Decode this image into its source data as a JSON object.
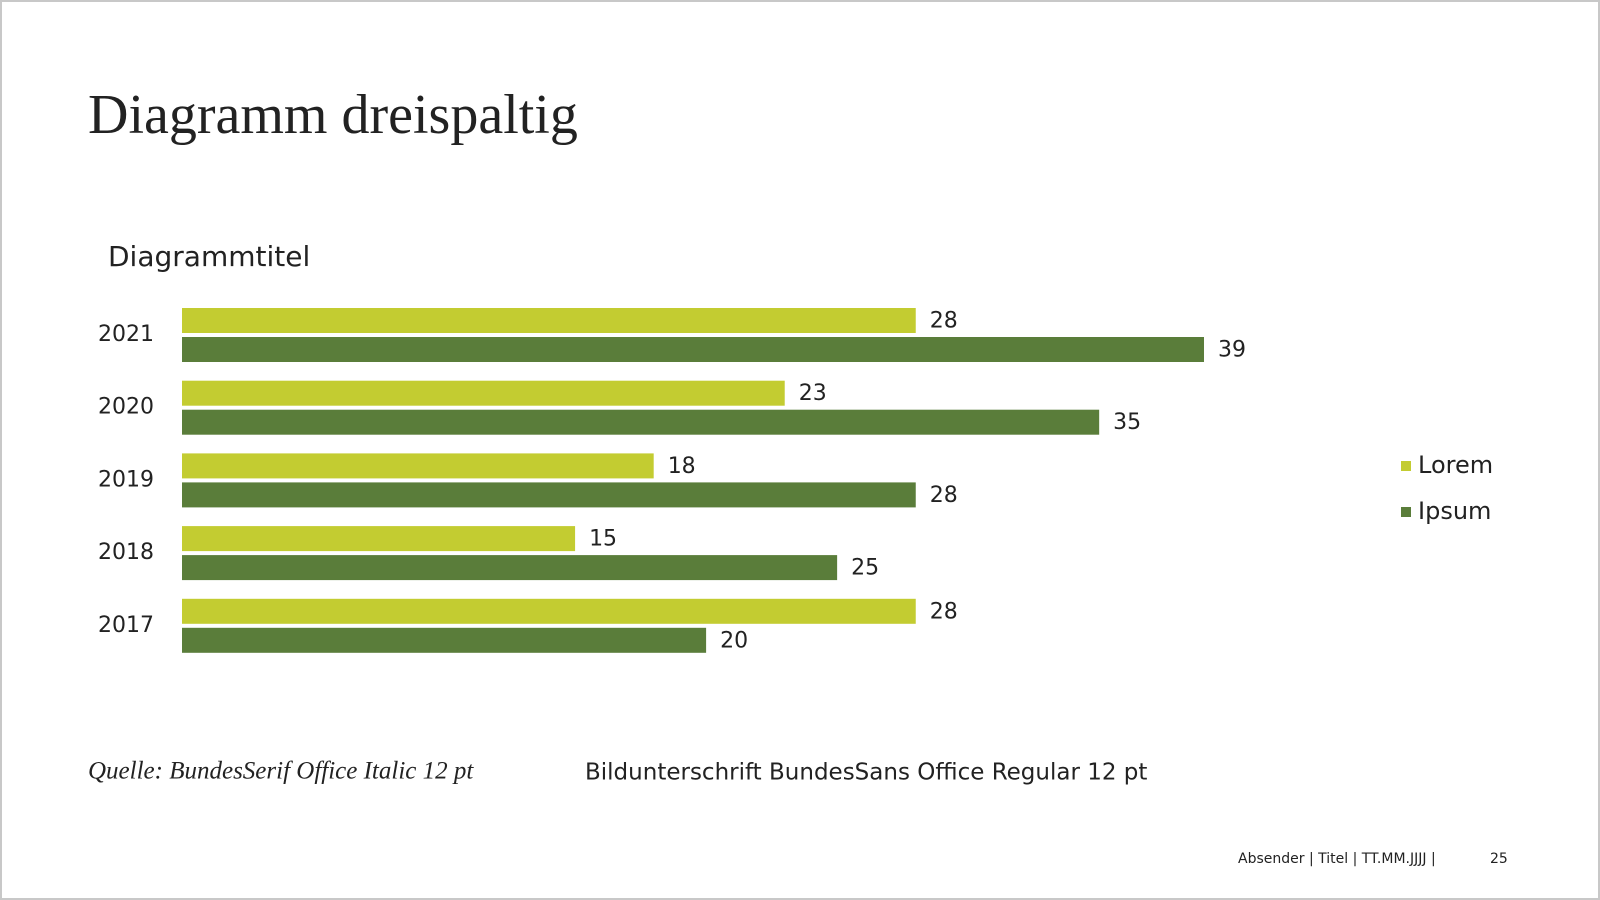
{
  "slide_title": "Diagramm dreispaltig",
  "chart_data": {
    "type": "bar",
    "orientation": "horizontal",
    "title": "Diagrammtitel",
    "categories": [
      "2021",
      "2020",
      "2019",
      "2018",
      "2017"
    ],
    "series": [
      {
        "name": "Lorem",
        "color": "#c3cc31",
        "values": [
          28,
          23,
          18,
          15,
          28
        ]
      },
      {
        "name": "Ipsum",
        "color": "#5a7d3a",
        "values": [
          39,
          35,
          28,
          25,
          20
        ]
      }
    ],
    "legend": "right",
    "grid": false
  },
  "source": "Quelle: BundesSerif Office Italic 12 pt",
  "caption": "Bildunterschrift BundesSans Office Regular 12 pt",
  "footer": "Absender | Titel | TT.MM.JJJJ |",
  "page_number": "25"
}
